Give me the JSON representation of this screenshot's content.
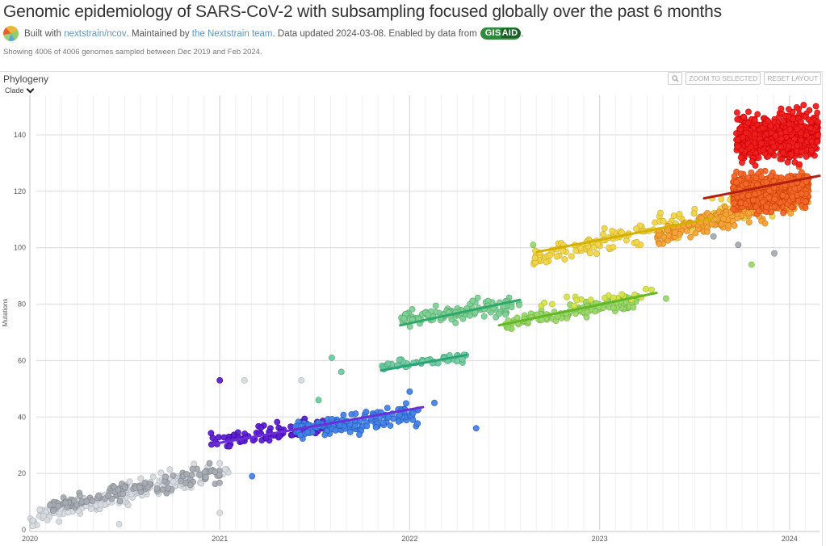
{
  "header": {
    "title": "Genomic epidemiology of SARS-CoV-2 with subsampling focused globally over the past 6 months",
    "byline_prefix": "Built with ",
    "byline_link1": "nextstrain/ncov",
    "byline_mid": ". Maintained by ",
    "byline_link2": "the Nextstrain team",
    "byline_suffix": ". Data updated 2024-03-08. Enabled by data from ",
    "gisaid_gis": "GIS",
    "gisaid_aid": "AID",
    "byline_end": ".",
    "showing": "Showing 4006 of 4006 genomes sampled between Dec 2019 and Feb 2024."
  },
  "panel": {
    "title": "Phylogeny",
    "color_by": "Clade",
    "buttons": {
      "zoom_icon": "magnifier-icon",
      "zoom_to_selected": "ZOOM TO SELECTED",
      "reset_layout": "RESET LAYOUT"
    }
  },
  "chart_data": {
    "type": "scatter",
    "title": "",
    "xlabel": "",
    "ylabel": "Mutations",
    "xlim": [
      2020.0,
      2024.17
    ],
    "ylim": [
      0,
      146
    ],
    "x_ticks": [
      2020,
      2021,
      2022,
      2023,
      2024
    ],
    "x_tick_labels": [
      "2020",
      "2021",
      "2022",
      "2023",
      "2024"
    ],
    "y_ticks": [
      0,
      20,
      40,
      60,
      80,
      100,
      120,
      140
    ],
    "y_tick_labels": [
      "0",
      "20",
      "40",
      "60",
      "80",
      "100",
      "120",
      "140"
    ],
    "grid": true,
    "minor_x_grid": "monthly",
    "legend": "none",
    "clusters": [
      {
        "name": "early-light-grey",
        "color": "#d6dbe0",
        "x": [
          2020.0,
          2021.05
        ],
        "y_start": [
          0,
          8
        ],
        "y_end": [
          14,
          30
        ],
        "count": 170,
        "seed": 11
      },
      {
        "name": "early-dark-grey",
        "color": "#a7acb2",
        "x": [
          2020.1,
          2021.0
        ],
        "y_start": [
          5,
          12
        ],
        "y_end": [
          15,
          25
        ],
        "count": 130,
        "seed": 12
      },
      {
        "name": "20I-purple",
        "color": "#5d1fcf",
        "x": [
          2020.95,
          2021.55
        ],
        "y_start": [
          26,
          36
        ],
        "y_end": [
          32,
          42
        ],
        "count": 80,
        "seed": 13
      },
      {
        "name": "21-blue",
        "color": "#4682e6",
        "x": [
          2021.4,
          2022.05
        ],
        "y_start": [
          30,
          40
        ],
        "y_end": [
          36,
          47
        ],
        "count": 150,
        "seed": 14
      },
      {
        "name": "21K-teal",
        "color": "#6fcba0",
        "x": [
          2021.85,
          2022.3
        ],
        "y_start": [
          56,
          60
        ],
        "y_end": [
          59,
          64
        ],
        "count": 50,
        "seed": 15
      },
      {
        "name": "22-green",
        "color": "#7ed095",
        "x": [
          2021.95,
          2022.58
        ],
        "y_start": [
          71,
          78
        ],
        "y_end": [
          75,
          86
        ],
        "count": 130,
        "seed": 16
      },
      {
        "name": "22-lightgreen",
        "color": "#9ad86c",
        "x": [
          2022.5,
          2023.2
        ],
        "y_start": [
          70,
          76
        ],
        "y_end": [
          78,
          85
        ],
        "count": 130,
        "seed": 17
      },
      {
        "name": "22-yellow-green",
        "color": "#d5e34a",
        "x": [
          2022.62,
          2023.3
        ],
        "y_start": [
          77,
          82
        ],
        "y_end": [
          82,
          87
        ],
        "count": 20,
        "seed": 18
      },
      {
        "name": "23-yellow",
        "color": "#f1d54b",
        "x": [
          2022.65,
          2023.95
        ],
        "y_start": [
          92,
          100
        ],
        "y_end": [
          108,
          128
        ],
        "count": 190,
        "seed": 19
      },
      {
        "name": "23-orange",
        "color": "#f6a33a",
        "x": [
          2023.3,
          2024.1
        ],
        "y_start": [
          100,
          108
        ],
        "y_end": [
          110,
          128
        ],
        "count": 220,
        "seed": 20
      },
      {
        "name": "23-dark-orange",
        "color": "#f2672b",
        "x": [
          2023.7,
          2024.1
        ],
        "y_start": [
          110,
          128
        ],
        "y_end": [
          112,
          130
        ],
        "count": 600,
        "seed": 21
      },
      {
        "name": "24-red",
        "color": "#ef1f1f",
        "x": [
          2023.72,
          2024.15
        ],
        "y_start": [
          128,
          150
        ],
        "y_end": [
          128,
          152
        ],
        "count": 650,
        "seed": 22
      }
    ],
    "outliers": [
      {
        "x": 2021.0,
        "y": 53,
        "color": "#5d1fcf"
      },
      {
        "x": 2021.13,
        "y": 53,
        "color": "#d6dbe0"
      },
      {
        "x": 2021.43,
        "y": 53,
        "color": "#d6dbe0"
      },
      {
        "x": 2021.59,
        "y": 61,
        "color": "#6fcba0"
      },
      {
        "x": 2021.64,
        "y": 56,
        "color": "#6fcba0"
      },
      {
        "x": 2021.52,
        "y": 46,
        "color": "#6fcba0"
      },
      {
        "x": 2022.35,
        "y": 36,
        "color": "#4682e6"
      },
      {
        "x": 2022.13,
        "y": 45,
        "color": "#4682e6"
      },
      {
        "x": 2022.0,
        "y": 49,
        "color": "#4682e6"
      },
      {
        "x": 2021.17,
        "y": 19,
        "color": "#4682e6"
      },
      {
        "x": 2023.35,
        "y": 82,
        "color": "#9ad86c"
      },
      {
        "x": 2023.8,
        "y": 94,
        "color": "#9ad86c"
      },
      {
        "x": 2023.6,
        "y": 104,
        "color": "#a7acb2"
      },
      {
        "x": 2023.92,
        "y": 98,
        "color": "#a7acb2"
      },
      {
        "x": 2023.73,
        "y": 101,
        "color": "#a7acb2"
      },
      {
        "x": 2022.65,
        "y": 101,
        "color": "#9ad86c"
      },
      {
        "x": 2020.47,
        "y": 2,
        "color": "#d6dbe0"
      },
      {
        "x": 2021.0,
        "y": 6,
        "color": "#d6dbe0"
      }
    ],
    "regression_lines": [
      {
        "color": "#6a2fd8",
        "x": [
          2020.97,
          2022.07
        ],
        "y": [
          30.5,
          43.5
        ]
      },
      {
        "color": "#2aa37a",
        "x": [
          2021.85,
          2022.3
        ],
        "y": [
          56.5,
          62
        ]
      },
      {
        "color": "#2ea86a",
        "x": [
          2021.95,
          2022.58
        ],
        "y": [
          72.5,
          81.5
        ]
      },
      {
        "color": "#62b825",
        "x": [
          2022.47,
          2023.3
        ],
        "y": [
          72.5,
          84
        ]
      },
      {
        "color": "#d4b100",
        "x": [
          2022.67,
          2023.6
        ],
        "y": [
          98.5,
          110.5
        ]
      },
      {
        "color": "#b51f12",
        "x": [
          2023.55,
          2024.17
        ],
        "y": [
          117.5,
          125.5
        ]
      }
    ]
  }
}
